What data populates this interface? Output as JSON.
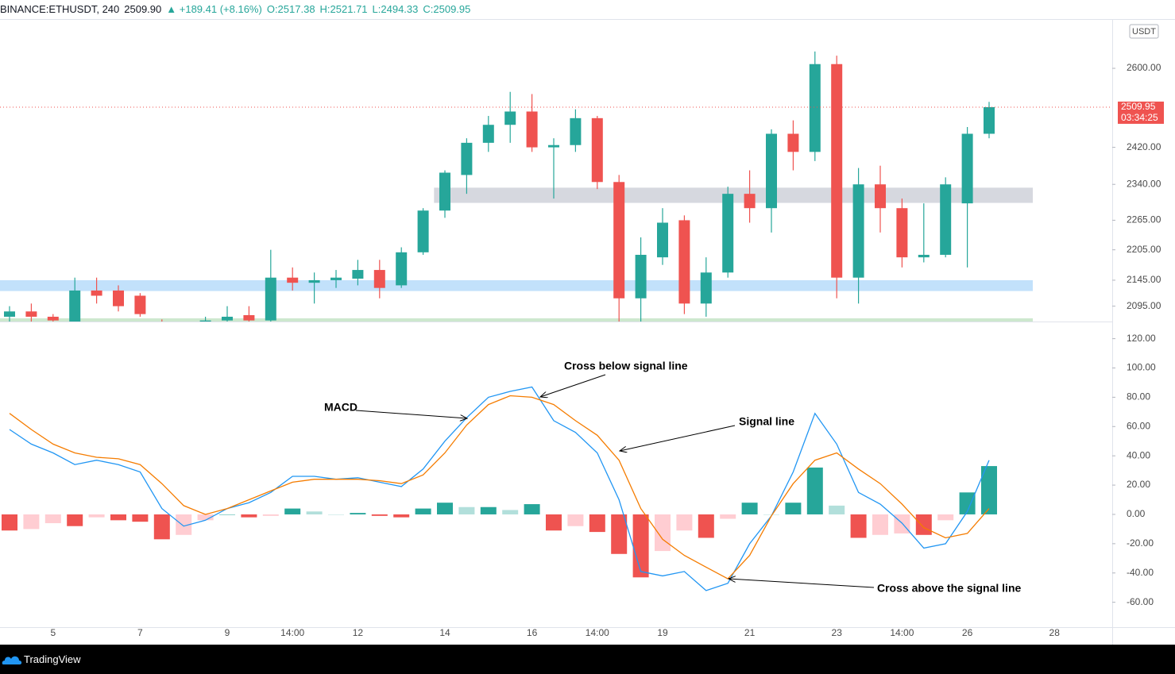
{
  "header": {
    "symbol": "BINANCE:ETHUSDT, 240",
    "price": "2509.90",
    "change": "▲ +189.41 (+8.16%)",
    "ohlc": [
      "O:2517.38",
      "H:2521.71",
      "L:2494.33",
      "C:2509.95"
    ]
  },
  "footer": "TradingView",
  "chart_data": [
    {
      "type": "candlestick",
      "currency": "USDT",
      "log": true,
      "categories": [
        null,
        null,
        "5",
        null,
        null,
        null,
        "7",
        null,
        null,
        null,
        "9",
        null,
        null,
        "14:00",
        null,
        null,
        "12",
        null,
        null,
        null,
        "14",
        null,
        null,
        null,
        "16",
        null,
        null,
        "14:00",
        null,
        null,
        "19",
        null,
        null,
        null,
        "21",
        null,
        null,
        null,
        "23",
        null,
        null,
        "14:00",
        null,
        null,
        "26",
        null,
        null,
        null,
        "28",
        null
      ],
      "open": [
        2075,
        2085,
        2075,
        2060,
        2125,
        2125,
        2115,
        2065,
        2050,
        2055,
        2068,
        2078,
        2068,
        2150,
        2140,
        2145,
        2148,
        2165,
        2135,
        2200,
        2285,
        2360,
        2430,
        2470,
        2500,
        2420,
        2425,
        2485,
        2345,
        2110,
        2190,
        2265,
        2100,
        2160,
        2320,
        2290,
        2450,
        2410,
        2610,
        2150,
        2340,
        2290,
        2190,
        2195,
        2300,
        2450,
        null,
        null,
        null,
        null
      ],
      "high": [
        2095,
        2100,
        2080,
        2150,
        2150,
        2135,
        2120,
        2070,
        2062,
        2075,
        2095,
        2095,
        2205,
        2170,
        2160,
        2165,
        2185,
        2185,
        2210,
        2290,
        2370,
        2440,
        2490,
        2545,
        2540,
        2440,
        2505,
        2490,
        2360,
        2230,
        2290,
        2275,
        2190,
        2335,
        2370,
        2460,
        2480,
        2640,
        2630,
        2375,
        2380,
        2310,
        2300,
        2355,
        2465,
        2522,
        null,
        null,
        null,
        null
      ],
      "low": [
        2066,
        2066,
        2060,
        2055,
        2100,
        2085,
        2075,
        2040,
        2035,
        2045,
        2060,
        2062,
        2060,
        2125,
        2100,
        2130,
        2135,
        2110,
        2130,
        2195,
        2270,
        2320,
        2410,
        2430,
        2410,
        2310,
        2410,
        2330,
        2030,
        2060,
        2175,
        2080,
        2075,
        2150,
        2260,
        2240,
        2370,
        2390,
        2110,
        2100,
        2240,
        2170,
        2180,
        2190,
        2170,
        2440,
        null,
        null,
        null,
        null
      ],
      "close": [
        2085,
        2075,
        2068,
        2125,
        2115,
        2095,
        2080,
        2050,
        2055,
        2068,
        2075,
        2068,
        2150,
        2140,
        2145,
        2150,
        2165,
        2130,
        2200,
        2285,
        2365,
        2430,
        2470,
        2500,
        2420,
        2425,
        2485,
        2345,
        2110,
        2195,
        2260,
        2100,
        2160,
        2320,
        2290,
        2450,
        2410,
        2610,
        2150,
        2340,
        2290,
        2190,
        2195,
        2340,
        2450,
        2510,
        null,
        null,
        null,
        null
      ],
      "up_color": "#26a69a",
      "down_color": "#ef5350",
      "zones": [
        {
          "lower": 2301,
          "upper": 2333,
          "start": 20,
          "color": "#d1d4dc"
        },
        {
          "lower": 2124,
          "upper": 2145,
          "start": 0,
          "color": "#bbdefb"
        },
        {
          "lower": 2066,
          "upper": 2072,
          "start": 0,
          "color": "#c8e6c9"
        }
      ],
      "last_price": 2509.95,
      "countdown": "03:34:25",
      "last_color": "#ef5350",
      "ylim": [
        2066,
        2717
      ],
      "yticks": [
        {
          "value": 2095,
          "label": "2095.00"
        },
        {
          "value": 2145,
          "label": "2145.00"
        },
        {
          "value": 2205,
          "label": "2205.00"
        },
        {
          "value": 2265,
          "label": "2265.00"
        },
        {
          "value": 2340,
          "label": "2340.00"
        },
        {
          "value": 2420,
          "label": "2420.00"
        },
        {
          "value": 2600,
          "label": "2600.00"
        }
      ]
    },
    {
      "type": "macd",
      "series": [
        {
          "name": "MACD",
          "color": "#2196f3",
          "values": [
            58,
            48,
            42,
            34,
            37,
            34,
            29,
            4,
            -8,
            -4,
            4,
            8,
            15,
            26,
            26,
            24,
            25,
            22,
            19,
            31,
            50,
            66,
            80,
            84,
            87,
            64,
            56,
            42,
            10,
            -39,
            -42,
            -39,
            -52,
            -47,
            -20,
            -1,
            29,
            69,
            48,
            15,
            7,
            -6,
            -23,
            -20,
            2,
            37,
            null,
            null,
            null,
            null
          ]
        },
        {
          "name": "Signal line",
          "color": "#f57c00",
          "values": [
            69,
            58,
            48,
            42,
            39,
            38,
            34,
            21,
            6,
            0,
            4,
            10,
            16,
            22,
            24,
            24,
            24,
            23,
            21,
            27,
            42,
            61,
            75,
            81,
            80,
            75,
            64,
            54,
            37,
            4,
            -17,
            -28,
            -36,
            -44,
            -28,
            -1,
            21,
            37,
            42,
            31,
            21,
            7,
            -9,
            -16,
            -13,
            4,
            null,
            null,
            null,
            null
          ]
        }
      ],
      "histogram": [
        -11,
        -10,
        -6,
        -8,
        -2,
        -4,
        -5,
        -17,
        -14,
        -4,
        0,
        -2,
        -1,
        4,
        2,
        0,
        1,
        -1,
        -2,
        4,
        8,
        5,
        5,
        3,
        7,
        -11,
        -8,
        -12,
        -27,
        -43,
        -25,
        -11,
        -16,
        -3,
        8,
        0,
        8,
        32,
        6,
        -16,
        -14,
        -13,
        -14,
        -4,
        15,
        33,
        null,
        null,
        null,
        null
      ],
      "histogram_colors": {
        "positive_rising": "#26a69a",
        "positive_falling": "#b2dfdb",
        "negative_falling": "#ef5350",
        "negative_rising": "#ffcdd2"
      },
      "annotations": [
        "Cross below signal line",
        "Cross above the signal line"
      ],
      "ylim": [
        -77,
        129
      ],
      "yticks": [
        {
          "value": -60,
          "label": "-60.00"
        },
        {
          "value": -40,
          "label": "-40.00"
        },
        {
          "value": -20,
          "label": "-20.00"
        },
        {
          "value": 0,
          "label": "0.00"
        },
        {
          "value": 20,
          "label": "20.00"
        },
        {
          "value": 40,
          "label": "40.00"
        },
        {
          "value": 60,
          "label": "60.00"
        },
        {
          "value": 80,
          "label": "80.00"
        },
        {
          "value": 100,
          "label": "100.00"
        },
        {
          "value": 120,
          "label": "120.00"
        }
      ]
    }
  ]
}
